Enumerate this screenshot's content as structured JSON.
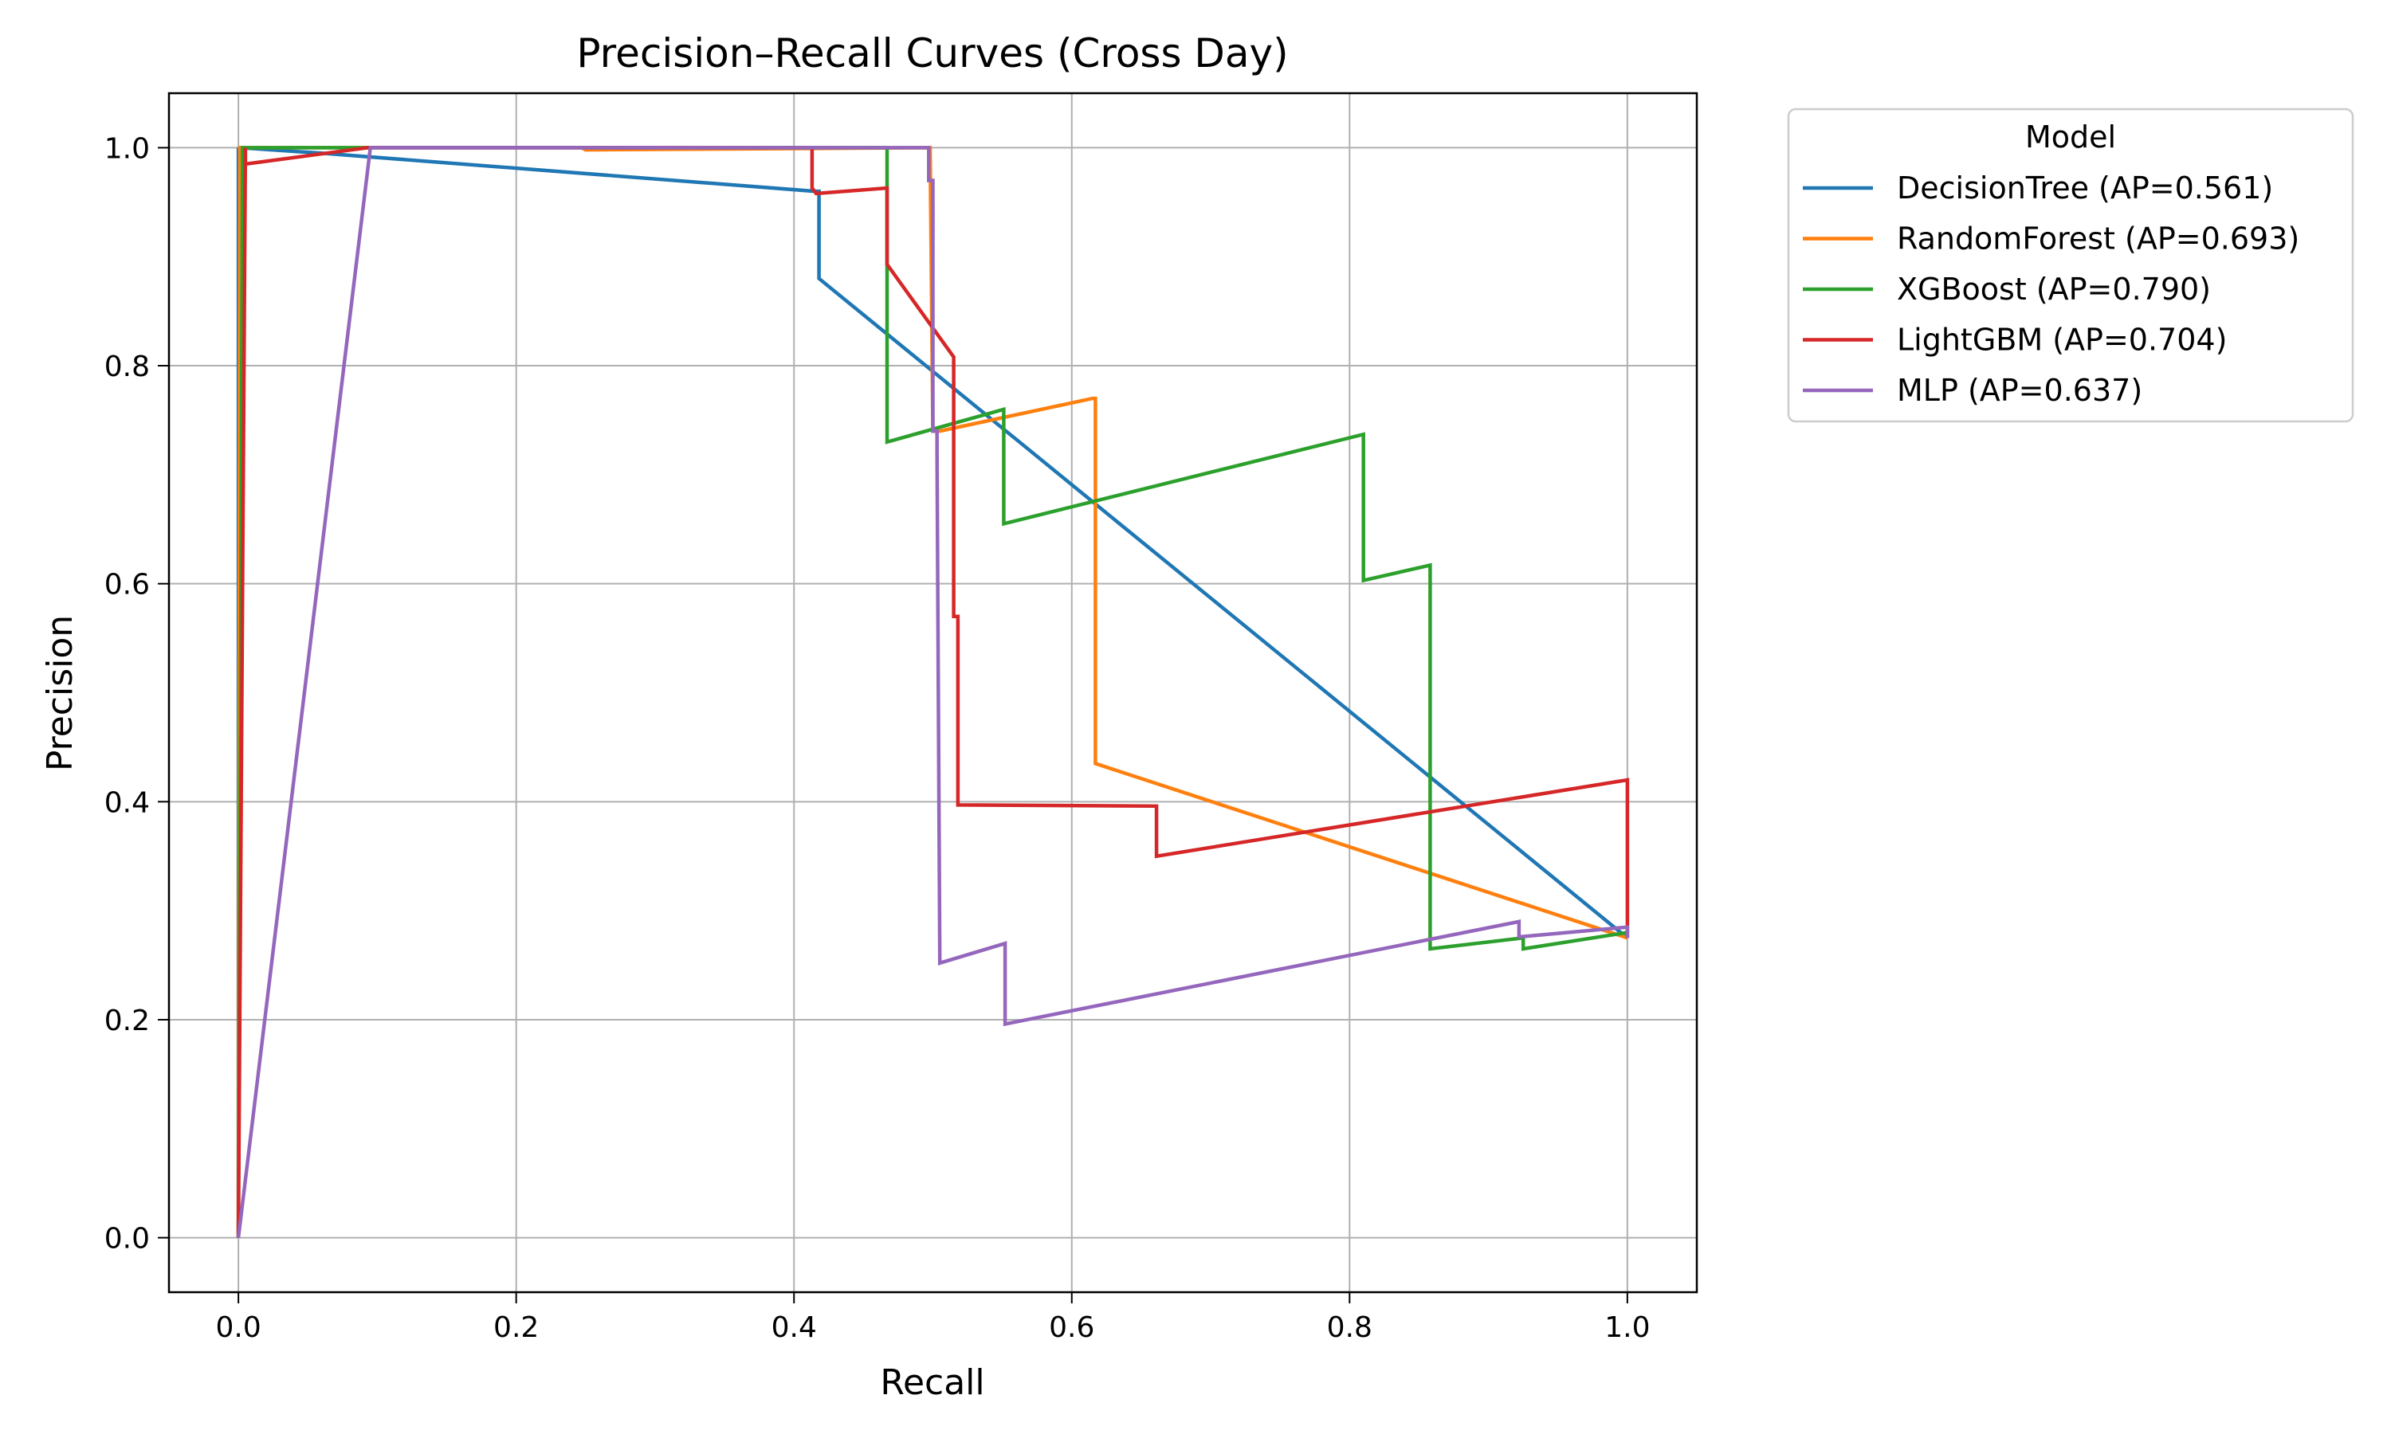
{
  "chart_data": {
    "type": "line",
    "title": "Precision–Recall Curves (Cross Day)",
    "xlabel": "Recall",
    "ylabel": "Precision",
    "xlim": [
      -0.05,
      1.05
    ],
    "ylim": [
      -0.05,
      1.05
    ],
    "xticks": [
      0.0,
      0.2,
      0.4,
      0.6,
      0.8,
      1.0
    ],
    "yticks": [
      0.0,
      0.2,
      0.4,
      0.6,
      0.8,
      1.0
    ],
    "x_tick_labels": [
      "0.0",
      "0.2",
      "0.4",
      "0.6",
      "0.8",
      "1.0"
    ],
    "y_tick_labels": [
      "0.0",
      "0.2",
      "0.4",
      "0.6",
      "0.8",
      "1.0"
    ],
    "grid": true,
    "legend": {
      "title": "Model",
      "placement": "outside-top-right"
    },
    "series": [
      {
        "name": "DecisionTree (AP=0.561)",
        "color": "#1f77b4",
        "points": [
          [
            0.0,
            1.0
          ],
          [
            0.0,
            0.0
          ],
          [
            0.001,
            1.0
          ],
          [
            0.06,
            0.995
          ],
          [
            0.415,
            0.96
          ],
          [
            0.418,
            0.96
          ],
          [
            0.418,
            0.88
          ],
          [
            1.0,
            0.275
          ]
        ]
      },
      {
        "name": "RandomForest (AP=0.693)",
        "color": "#ff7f0e",
        "points": [
          [
            0.0,
            0.0
          ],
          [
            0.001,
            1.0
          ],
          [
            0.247,
            1.0
          ],
          [
            0.25,
            0.998
          ],
          [
            0.498,
            1.0
          ],
          [
            0.5,
            0.74
          ],
          [
            0.505,
            0.74
          ],
          [
            0.615,
            0.77
          ],
          [
            0.617,
            0.77
          ],
          [
            0.617,
            0.435
          ],
          [
            1.0,
            0.275
          ]
        ]
      },
      {
        "name": "XGBoost (AP=0.790)",
        "color": "#2ca02c",
        "points": [
          [
            0.0,
            0.0
          ],
          [
            0.003,
            1.0
          ],
          [
            0.467,
            1.0
          ],
          [
            0.467,
            0.73
          ],
          [
            0.551,
            0.76
          ],
          [
            0.551,
            0.655
          ],
          [
            0.81,
            0.737
          ],
          [
            0.81,
            0.603
          ],
          [
            0.858,
            0.617
          ],
          [
            0.858,
            0.265
          ],
          [
            0.925,
            0.275
          ],
          [
            0.925,
            0.265
          ],
          [
            1.0,
            0.28
          ]
        ]
      },
      {
        "name": "LightGBM (AP=0.704)",
        "color": "#d62728",
        "points": [
          [
            0.0,
            0.0
          ],
          [
            0.005,
            1.0
          ],
          [
            0.005,
            0.985
          ],
          [
            0.093,
            1.0
          ],
          [
            0.413,
            1.0
          ],
          [
            0.413,
            0.963
          ],
          [
            0.416,
            0.958
          ],
          [
            0.467,
            0.963
          ],
          [
            0.467,
            0.893
          ],
          [
            0.515,
            0.808
          ],
          [
            0.515,
            0.57
          ],
          [
            0.518,
            0.57
          ],
          [
            0.518,
            0.397
          ],
          [
            0.661,
            0.396
          ],
          [
            0.661,
            0.35
          ],
          [
            1.0,
            0.42
          ],
          [
            1.0,
            0.275
          ]
        ]
      },
      {
        "name": "MLP (AP=0.637)",
        "color": "#9467bd",
        "points": [
          [
            0.0,
            0.0
          ],
          [
            0.095,
            1.0
          ],
          [
            0.497,
            1.0
          ],
          [
            0.497,
            0.97
          ],
          [
            0.5,
            0.97
          ],
          [
            0.5,
            0.74
          ],
          [
            0.503,
            0.74
          ],
          [
            0.503,
            0.72
          ],
          [
            0.505,
            0.252
          ],
          [
            0.552,
            0.27
          ],
          [
            0.552,
            0.196
          ],
          [
            0.922,
            0.29
          ],
          [
            0.922,
            0.276
          ],
          [
            1.0,
            0.285
          ],
          [
            1.0,
            0.275
          ]
        ]
      }
    ]
  }
}
